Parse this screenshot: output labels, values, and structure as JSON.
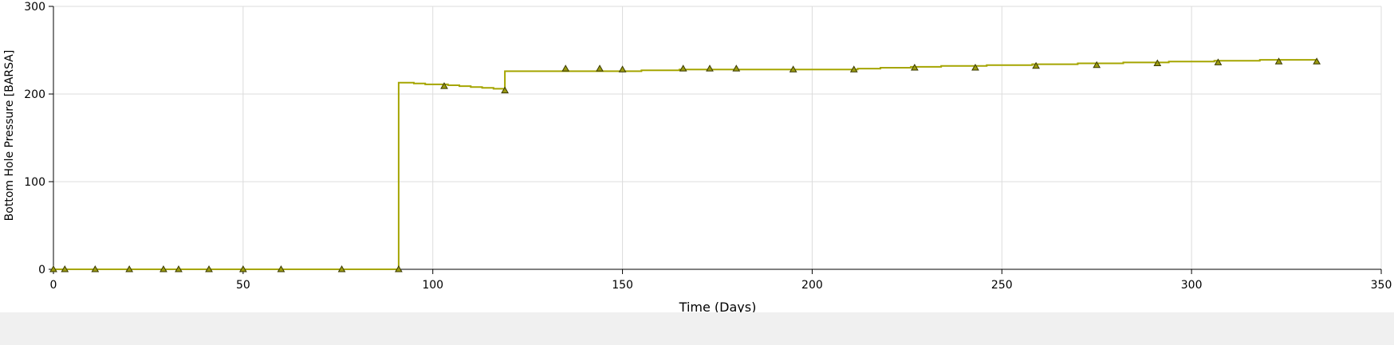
{
  "chart_data": {
    "type": "line",
    "title": "",
    "xlabel": "Time (Days)",
    "ylabel": "Bottom Hole Pressure [BARSA]",
    "xlim": [
      0,
      350
    ],
    "ylim": [
      0,
      300
    ],
    "x_ticks": [
      0,
      50,
      100,
      150,
      200,
      250,
      300,
      350
    ],
    "y_ticks": [
      0,
      100,
      200,
      300
    ],
    "grid": true,
    "legend": "none",
    "line_color": "#a5a500",
    "marker_fill": "#9a9a10",
    "marker_stroke": "#3a3a00",
    "grid_color": "#dcdcdc",
    "series": [
      {
        "step": true,
        "points": [
          [
            0,
            0
          ],
          [
            91,
            0
          ],
          [
            91,
            213
          ],
          [
            92,
            213
          ],
          [
            95,
            212
          ],
          [
            98,
            211
          ],
          [
            101,
            211
          ],
          [
            104,
            210
          ],
          [
            107,
            209
          ],
          [
            110,
            208
          ],
          [
            113,
            207
          ],
          [
            116,
            206
          ],
          [
            119,
            205
          ],
          [
            119,
            226
          ],
          [
            130,
            226
          ],
          [
            140,
            226
          ],
          [
            155,
            227
          ],
          [
            165,
            228
          ],
          [
            180,
            228
          ],
          [
            200,
            228
          ],
          [
            212,
            229
          ],
          [
            218,
            230
          ],
          [
            226,
            231
          ],
          [
            234,
            232
          ],
          [
            246,
            233
          ],
          [
            258,
            234
          ],
          [
            270,
            235
          ],
          [
            282,
            236
          ],
          [
            294,
            237
          ],
          [
            306,
            238
          ],
          [
            318,
            239
          ],
          [
            333,
            239
          ]
        ]
      }
    ],
    "markers": [
      [
        0,
        0
      ],
      [
        3,
        0
      ],
      [
        11,
        0
      ],
      [
        20,
        0
      ],
      [
        29,
        0
      ],
      [
        33,
        0
      ],
      [
        41,
        0
      ],
      [
        50,
        0
      ],
      [
        60,
        0
      ],
      [
        76,
        0
      ],
      [
        91,
        0
      ],
      [
        103,
        209
      ],
      [
        119,
        204
      ],
      [
        135,
        229
      ],
      [
        144,
        229
      ],
      [
        150,
        228
      ],
      [
        166,
        229
      ],
      [
        173,
        229
      ],
      [
        180,
        229
      ],
      [
        195,
        228
      ],
      [
        211,
        228
      ],
      [
        227,
        230
      ],
      [
        243,
        230
      ],
      [
        259,
        232
      ],
      [
        275,
        233
      ],
      [
        291,
        235
      ],
      [
        307,
        236
      ],
      [
        323,
        237
      ],
      [
        333,
        237
      ]
    ]
  }
}
